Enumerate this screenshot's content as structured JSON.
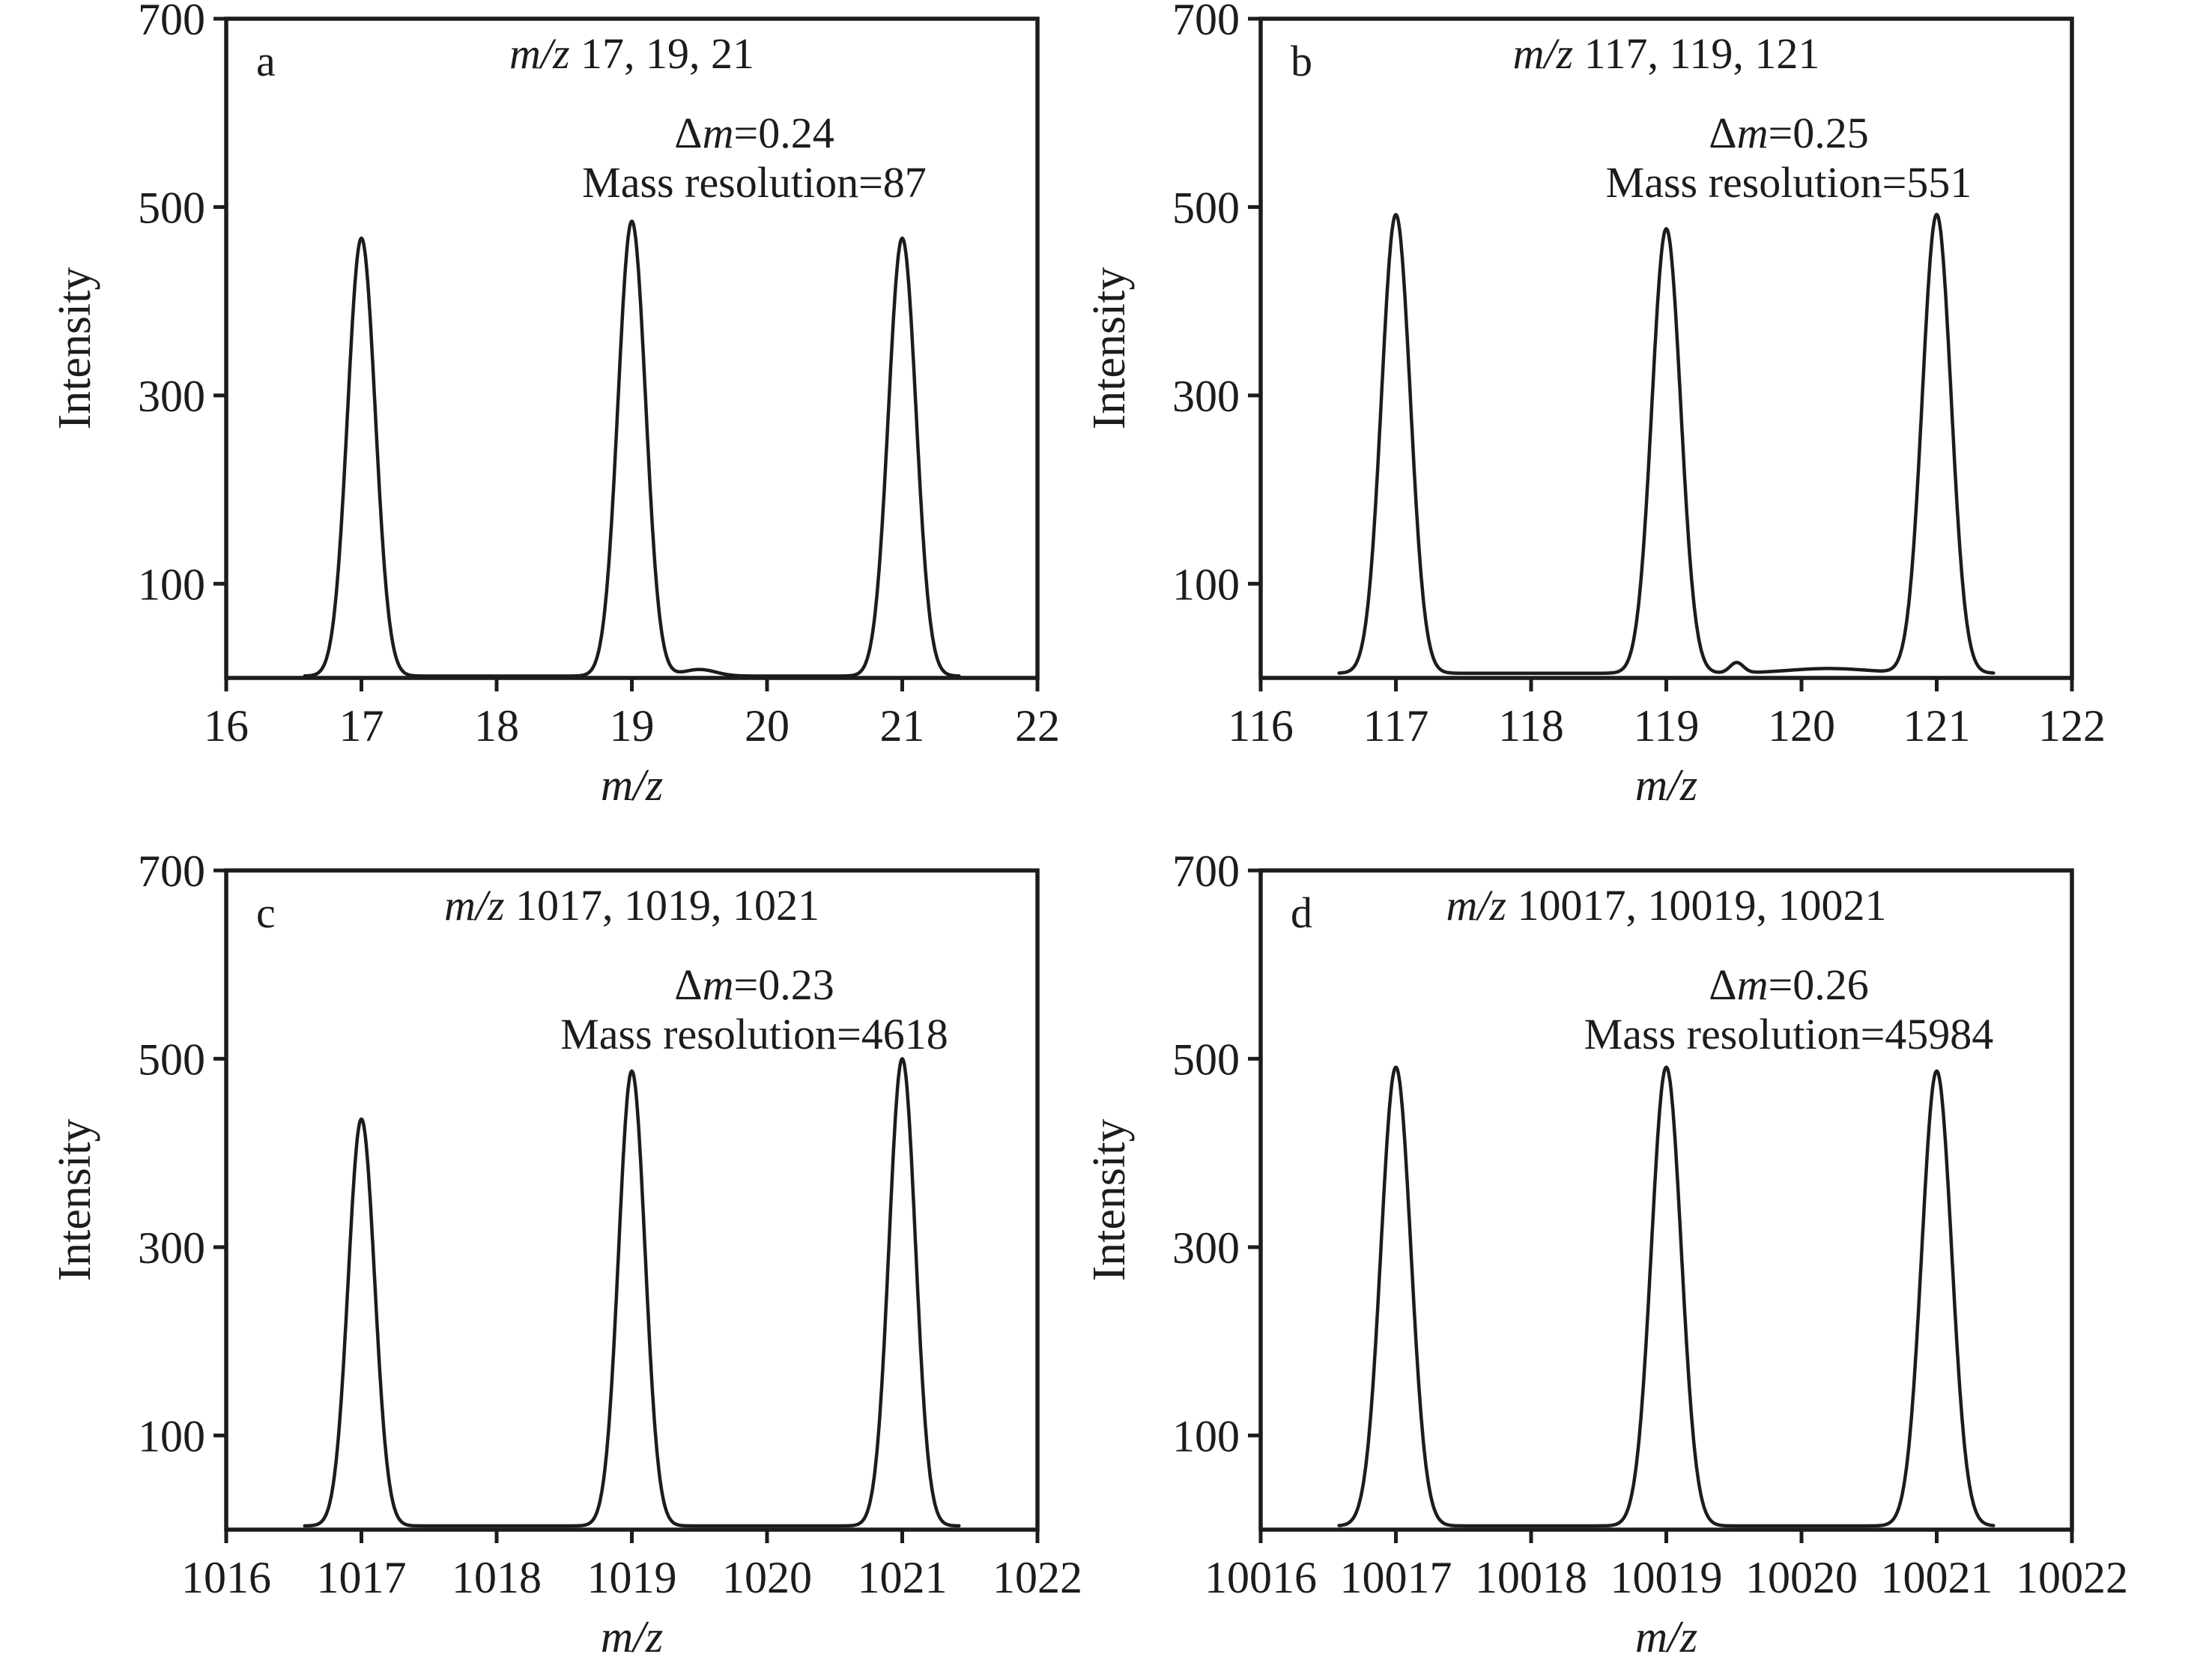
{
  "figure": {
    "background": "#ffffff",
    "line_color": "#1c1c1c",
    "text_color": "#1c1c1c"
  },
  "chart_data": [
    {
      "type": "line",
      "panel_label": "a",
      "title_italic": "m/z",
      "title_rest": " 17, 19, 21",
      "annotation_delta_symbol": "Δ",
      "annotation_delta_italic": "m",
      "annotation_delta_rest": "=0.24",
      "annotation_resolution": "Mass resolution=87",
      "xlabel_italic": "m/z",
      "ylabel": "Intensity",
      "xlim": [
        16,
        22
      ],
      "ylim": [
        0,
        700
      ],
      "xticks": [
        16,
        17,
        18,
        19,
        20,
        21,
        22
      ],
      "yticks": [
        100,
        300,
        500,
        700
      ],
      "grid": false,
      "legend": false,
      "peaks": [
        {
          "mz": 17,
          "intensity": 465
        },
        {
          "mz": 19,
          "intensity": 483
        },
        {
          "mz": 21,
          "intensity": 465
        }
      ],
      "peak_fwhm_mz": 0.24,
      "baseline_intensity": 2,
      "baseline_bumps": [
        {
          "mz": 19.5,
          "intensity": 7,
          "width_mz": 0.12
        }
      ]
    },
    {
      "type": "line",
      "panel_label": "b",
      "title_italic": "m/z",
      "title_rest": " 117, 119, 121",
      "annotation_delta_symbol": "Δ",
      "annotation_delta_italic": "m",
      "annotation_delta_rest": "=0.25",
      "annotation_resolution": "Mass resolution=551",
      "xlabel_italic": "m/z",
      "ylabel": "Intensity",
      "xlim": [
        116,
        122
      ],
      "ylim": [
        0,
        700
      ],
      "xticks": [
        116,
        117,
        118,
        119,
        120,
        121,
        122
      ],
      "yticks": [
        100,
        300,
        500,
        700
      ],
      "grid": false,
      "legend": false,
      "peaks": [
        {
          "mz": 117,
          "intensity": 487
        },
        {
          "mz": 119,
          "intensity": 472
        },
        {
          "mz": 121,
          "intensity": 487
        }
      ],
      "peak_fwhm_mz": 0.25,
      "baseline_intensity": 5,
      "baseline_bumps": [
        {
          "mz": 119.52,
          "intensity": 11,
          "width_mz": 0.05
        },
        {
          "mz": 120.2,
          "intensity": 5,
          "width_mz": 0.3
        }
      ]
    },
    {
      "type": "line",
      "panel_label": "c",
      "title_italic": "m/z",
      "title_rest": " 1017, 1019, 1021",
      "annotation_delta_symbol": "Δ",
      "annotation_delta_italic": "m",
      "annotation_delta_rest": "=0.23",
      "annotation_resolution": "Mass resolution=4618",
      "xlabel_italic": "m/z",
      "ylabel": "Intensity",
      "xlim": [
        1016,
        1022
      ],
      "ylim": [
        0,
        700
      ],
      "xticks": [
        1016,
        1017,
        1018,
        1019,
        1020,
        1021,
        1022
      ],
      "yticks": [
        100,
        300,
        500,
        700
      ],
      "grid": false,
      "legend": false,
      "peaks": [
        {
          "mz": 1017,
          "intensity": 432
        },
        {
          "mz": 1019,
          "intensity": 483
        },
        {
          "mz": 1021,
          "intensity": 496
        }
      ],
      "peak_fwhm_mz": 0.23,
      "baseline_intensity": 4,
      "baseline_bumps": []
    },
    {
      "type": "line",
      "panel_label": "d",
      "title_italic": "m/z",
      "title_rest": " 10017, 10019, 10021",
      "annotation_delta_symbol": "Δ",
      "annotation_delta_italic": "m",
      "annotation_delta_rest": "=0.26",
      "annotation_resolution": "Mass resolution=45984",
      "xlabel_italic": "m/z",
      "ylabel": "Intensity",
      "xlim": [
        10016,
        10022
      ],
      "ylim": [
        0,
        700
      ],
      "xticks": [
        10016,
        10017,
        10018,
        10019,
        10020,
        10021,
        10022
      ],
      "yticks": [
        100,
        300,
        500,
        700
      ],
      "grid": false,
      "legend": false,
      "peaks": [
        {
          "mz": 10017,
          "intensity": 487
        },
        {
          "mz": 10019,
          "intensity": 487
        },
        {
          "mz": 10021,
          "intensity": 483
        }
      ],
      "peak_fwhm_mz": 0.26,
      "baseline_intensity": 4,
      "baseline_bumps": []
    }
  ]
}
